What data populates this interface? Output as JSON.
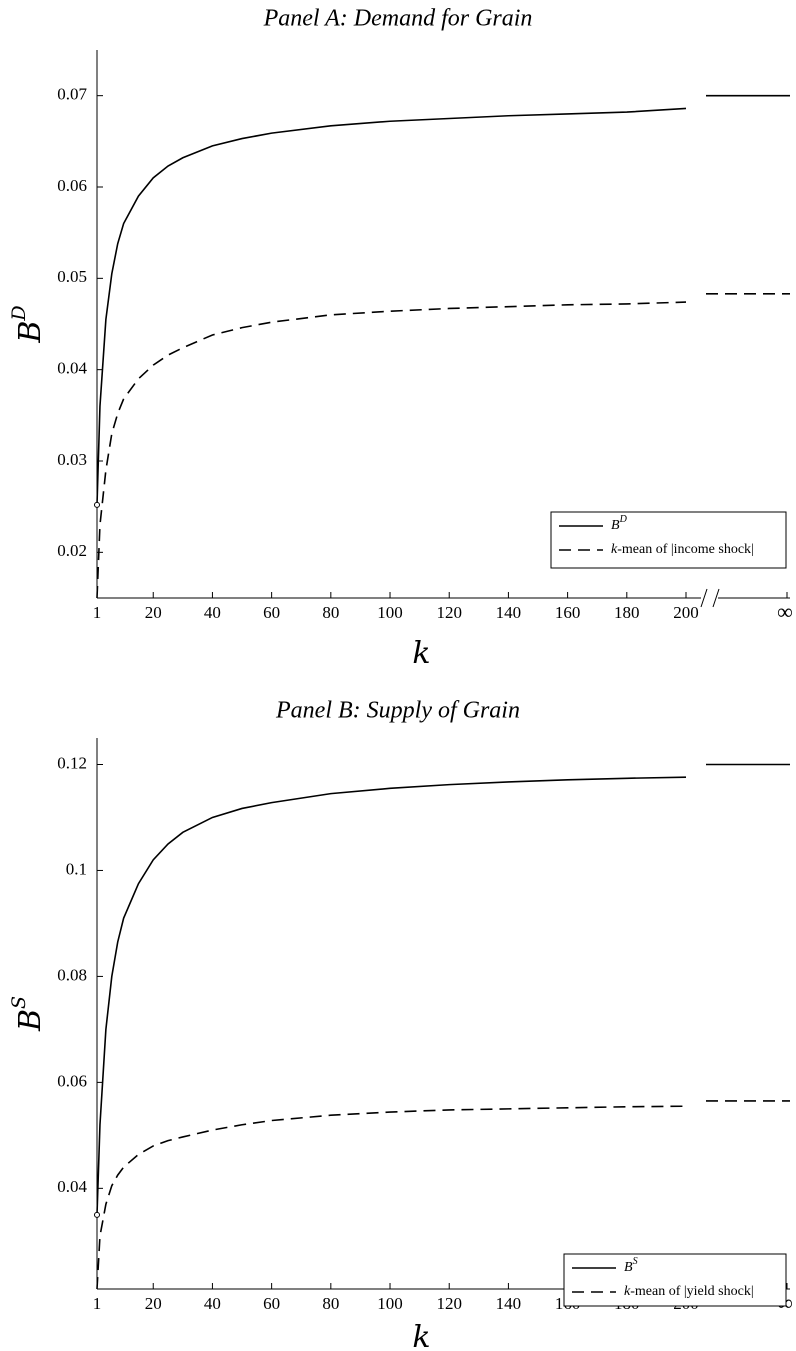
{
  "chart_data": [
    {
      "type": "line",
      "title": "Panel A: Demand for Grain",
      "xlabel": "k",
      "ylabel_base": "B",
      "ylabel_sup": "D",
      "xlim": [
        1,
        200
      ],
      "ylim": [
        0.015,
        0.075
      ],
      "x_ticks": [
        "1",
        "20",
        "40",
        "60",
        "80",
        "100",
        "120",
        "140",
        "160",
        "180",
        "200"
      ],
      "x_tick_values": [
        1,
        20,
        40,
        60,
        80,
        100,
        120,
        140,
        160,
        180,
        200
      ],
      "infinity_tick": "∞",
      "y_ticks": [
        "0.02",
        "0.03",
        "0.04",
        "0.05",
        "0.06",
        "0.07"
      ],
      "y_tick_values": [
        0.02,
        0.03,
        0.04,
        0.05,
        0.06,
        0.07
      ],
      "grid": false,
      "axis_break": true,
      "legend_position": "bottom-right",
      "series": [
        {
          "name_base": "B",
          "name_sup": "D",
          "style": "solid",
          "x": [
            1,
            2,
            4,
            6,
            8,
            10,
            15,
            20,
            25,
            30,
            40,
            50,
            60,
            80,
            100,
            120,
            140,
            160,
            180,
            200
          ],
          "values": [
            0.0252,
            0.036,
            0.0455,
            0.0505,
            0.0538,
            0.056,
            0.059,
            0.061,
            0.0623,
            0.0632,
            0.0645,
            0.0653,
            0.0659,
            0.0667,
            0.0672,
            0.0675,
            0.0678,
            0.068,
            0.0682,
            0.0686
          ],
          "limit_value": 0.07,
          "start_marker": true
        },
        {
          "name_prefix": "k",
          "name_rest": "-mean of |income shock|",
          "style": "dashed",
          "x": [
            1,
            2,
            4,
            6,
            8,
            10,
            15,
            20,
            25,
            30,
            40,
            50,
            60,
            80,
            100,
            120,
            140,
            160,
            180,
            200
          ],
          "values": [
            0.015,
            0.023,
            0.029,
            0.033,
            0.0352,
            0.0368,
            0.039,
            0.0405,
            0.0416,
            0.0424,
            0.0438,
            0.0446,
            0.0452,
            0.046,
            0.0464,
            0.0467,
            0.0469,
            0.0471,
            0.0472,
            0.0474
          ],
          "limit_value": 0.0483,
          "start_marker": false
        }
      ]
    },
    {
      "type": "line",
      "title": "Panel B: Supply of Grain",
      "xlabel": "k",
      "ylabel_base": "B",
      "ylabel_sup": "S",
      "xlim": [
        1,
        200
      ],
      "ylim": [
        0.021,
        0.125
      ],
      "x_ticks": [
        "1",
        "20",
        "40",
        "60",
        "80",
        "100",
        "120",
        "140",
        "160",
        "180",
        "200"
      ],
      "x_tick_values": [
        1,
        20,
        40,
        60,
        80,
        100,
        120,
        140,
        160,
        180,
        200
      ],
      "infinity_tick": "∞",
      "y_ticks": [
        "0.04",
        "0.06",
        "0.08",
        "0.1",
        "0.12"
      ],
      "y_tick_values": [
        0.04,
        0.06,
        0.08,
        0.1,
        0.12
      ],
      "grid": false,
      "axis_break": true,
      "legend_position": "bottom-right",
      "series": [
        {
          "name_base": "B",
          "name_sup": "S",
          "style": "solid",
          "x": [
            1,
            2,
            4,
            6,
            8,
            10,
            15,
            20,
            25,
            30,
            40,
            50,
            60,
            80,
            100,
            120,
            140,
            160,
            180,
            200
          ],
          "values": [
            0.035,
            0.052,
            0.07,
            0.08,
            0.0865,
            0.091,
            0.0975,
            0.102,
            0.105,
            0.1072,
            0.11,
            0.1117,
            0.1128,
            0.1145,
            0.1155,
            0.1162,
            0.1167,
            0.1171,
            0.1174,
            0.1176
          ],
          "limit_value": 0.12,
          "start_marker": true
        },
        {
          "name_prefix": "k",
          "name_rest": "-mean of |yield shock|",
          "style": "dashed",
          "x": [
            1,
            2,
            4,
            6,
            8,
            10,
            15,
            20,
            25,
            30,
            40,
            50,
            60,
            80,
            100,
            120,
            140,
            160,
            180,
            200
          ],
          "values": [
            0.021,
            0.031,
            0.037,
            0.0405,
            0.0425,
            0.044,
            0.0464,
            0.048,
            0.049,
            0.0497,
            0.051,
            0.052,
            0.0528,
            0.0538,
            0.0544,
            0.0548,
            0.055,
            0.0552,
            0.0554,
            0.0555
          ],
          "limit_value": 0.0565,
          "start_marker": false
        }
      ]
    }
  ]
}
